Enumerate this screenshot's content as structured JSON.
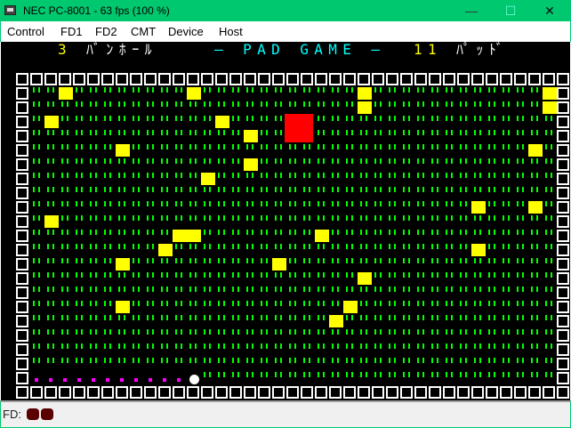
{
  "window": {
    "title": "NEC PC-8001 - 63 fps (100 %)",
    "minimize": "—",
    "maximize": "☐",
    "close": "✕"
  },
  "menu": [
    "Control",
    "FD1",
    "FD2",
    "CMT",
    "Device",
    "Host"
  ],
  "header": {
    "balls_text": "3",
    "balls_label": "ﾊﾞﾝﾎｰﾙ",
    "game_title": "― PAD GAME ―",
    "pads_text": "11",
    "pads_label": "ﾊﾟｯﾄﾞ"
  },
  "colors": {
    "number": "#ffff00",
    "label": "#ffffff",
    "title": "#00ffff",
    "grass": "#00ff00",
    "pad": "#ffff00",
    "target": "#ff0000",
    "trail": "#ff00ff",
    "ball": "#ffffff"
  },
  "game": {
    "cols": 39,
    "rows": 23,
    "pads": [
      [
        3,
        1
      ],
      [
        12,
        1
      ],
      [
        24,
        1
      ],
      [
        24,
        2
      ],
      [
        37,
        1
      ],
      [
        37,
        2
      ],
      [
        2,
        3
      ],
      [
        14,
        3
      ],
      [
        16,
        4
      ],
      [
        7,
        5
      ],
      [
        36,
        5
      ],
      [
        16,
        6
      ],
      [
        13,
        7
      ],
      [
        32,
        9
      ],
      [
        36,
        9
      ],
      [
        2,
        10
      ],
      [
        11,
        11
      ],
      [
        12,
        11
      ],
      [
        21,
        11
      ],
      [
        10,
        12
      ],
      [
        32,
        12
      ],
      [
        7,
        13
      ],
      [
        18,
        13
      ],
      [
        24,
        14
      ],
      [
        7,
        16
      ],
      [
        23,
        16
      ],
      [
        22,
        17
      ]
    ],
    "target": {
      "col": 19,
      "row": 3,
      "size": 2
    },
    "ball": {
      "col": 12,
      "row": 21
    },
    "trail_cols": [
      1,
      11
    ]
  },
  "status": {
    "fd_label": "FD:",
    "fd_leds": 2
  }
}
